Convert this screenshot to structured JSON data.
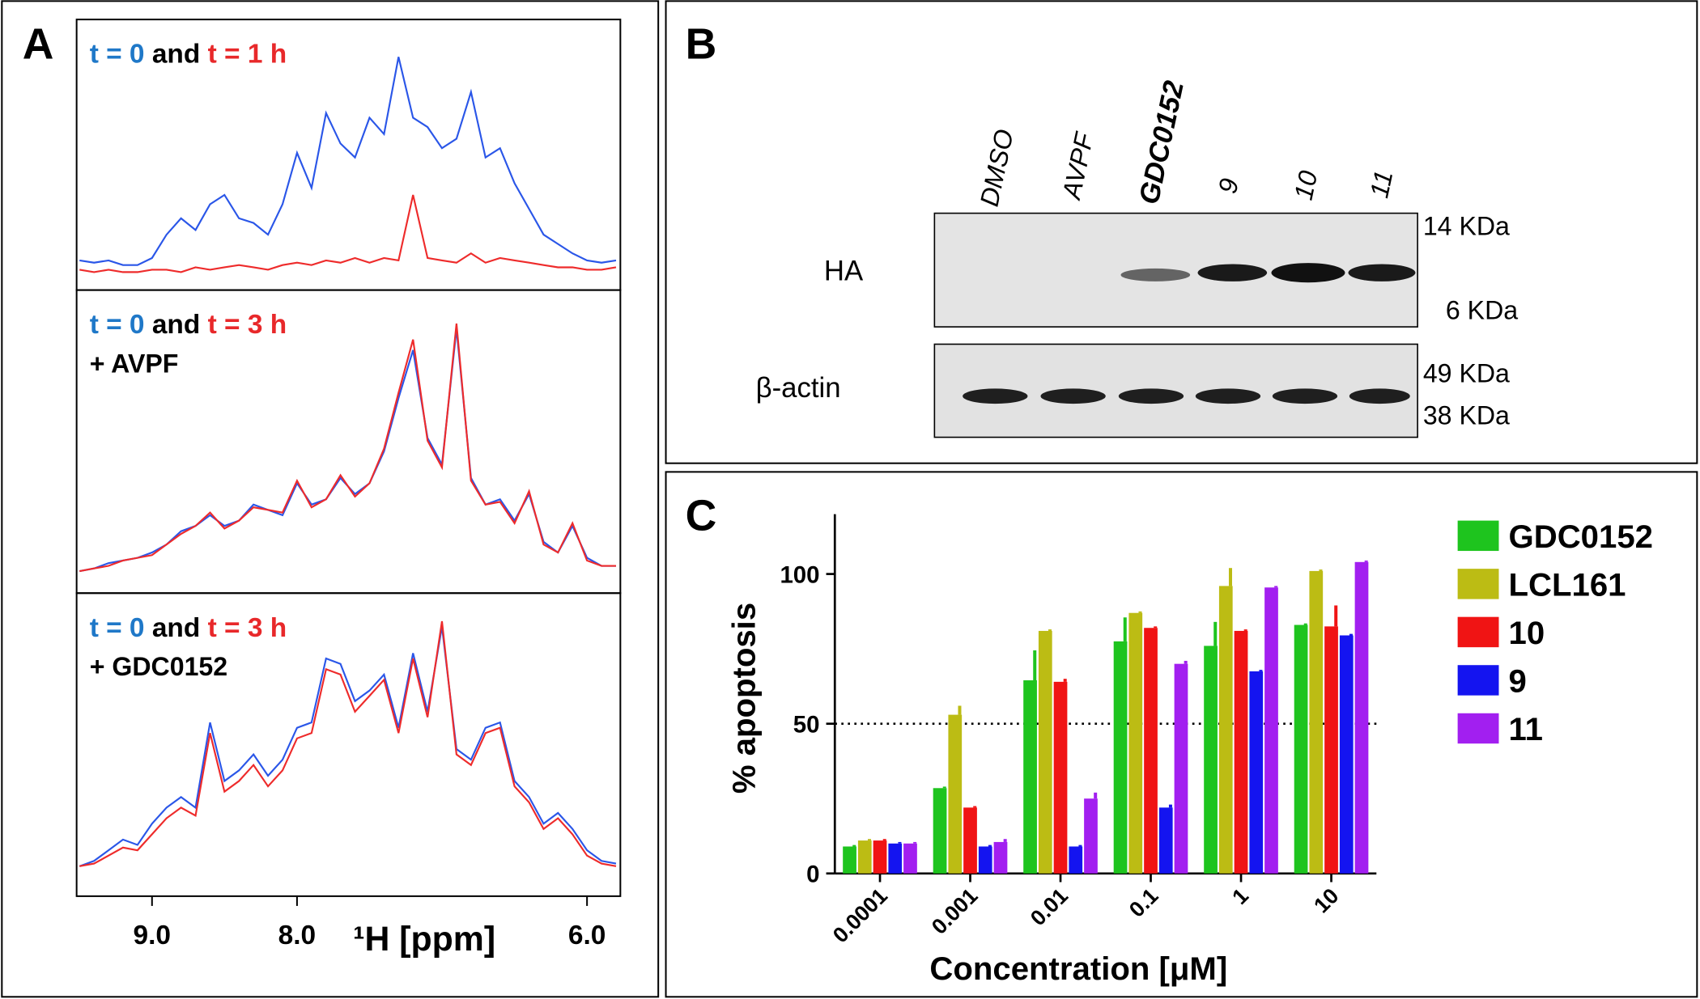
{
  "panel_labels": [
    "A",
    "B",
    "C"
  ],
  "blot": {
    "lanes": [
      "DMSO",
      "AVPF",
      "GDC0152",
      "9",
      "10",
      "11"
    ],
    "rows": [
      "HA",
      "β-actin"
    ],
    "markers": [
      "14 KDa",
      "6 KDa",
      "49 KDa",
      "38 KDa"
    ]
  },
  "chart_data": [
    {
      "type": "line",
      "legend_joiner": "and",
      "xlim": [
        9.52,
        5.77
      ],
      "ylim": [
        0,
        100
      ],
      "x": [
        9.5,
        9.4,
        9.3,
        9.2,
        9.1,
        9.0,
        8.9,
        8.8,
        8.7,
        8.6,
        8.5,
        8.4,
        8.3,
        8.2,
        8.1,
        8.0,
        7.9,
        7.8,
        7.7,
        7.6,
        7.5,
        7.4,
        7.3,
        7.2,
        7.1,
        7.0,
        6.9,
        6.8,
        6.7,
        6.6,
        6.5,
        6.4,
        6.3,
        6.2,
        6.1,
        6.0,
        5.9,
        5.8
      ],
      "series": [
        {
          "name": "t = 0",
          "color": "#2a56e8",
          "label_color": "#1f78c8",
          "values": [
            9,
            8,
            9,
            7,
            7,
            10,
            20,
            27,
            22,
            33,
            37,
            27,
            25,
            20,
            33,
            55,
            40,
            72,
            59,
            53,
            70,
            63,
            96,
            70,
            66,
            57,
            61,
            81,
            53,
            57,
            42,
            31,
            20,
            16,
            12,
            9,
            8,
            9
          ]
        },
        {
          "name": "t = 1 h",
          "color": "#ee2b2b",
          "label_color": "#e8282a",
          "values": [
            5,
            4,
            5,
            4,
            4,
            5,
            5,
            4,
            6,
            5,
            6,
            7,
            6,
            5,
            7,
            8,
            7,
            9,
            8,
            10,
            8,
            10,
            9,
            37,
            10,
            9,
            8,
            12,
            8,
            10,
            9,
            8,
            7,
            6,
            6,
            5,
            5,
            6
          ]
        }
      ]
    },
    {
      "type": "line",
      "legend_joiner": "and",
      "annotation": "+ AVPF",
      "xlim": [
        9.52,
        5.77
      ],
      "ylim": [
        0,
        100
      ],
      "x": [
        9.5,
        9.4,
        9.3,
        9.2,
        9.1,
        9.0,
        8.9,
        8.8,
        8.7,
        8.6,
        8.5,
        8.4,
        8.3,
        8.2,
        8.1,
        8.0,
        7.9,
        7.8,
        7.7,
        7.6,
        7.5,
        7.4,
        7.3,
        7.2,
        7.1,
        7.0,
        6.9,
        6.8,
        6.7,
        6.6,
        6.5,
        6.4,
        6.3,
        6.2,
        6.1,
        6.0,
        5.9,
        5.8
      ],
      "series": [
        {
          "name": "t = 0",
          "color": "#2a56e8",
          "label_color": "#1f78c8",
          "values": [
            5,
            6,
            8,
            9,
            10,
            12,
            15,
            20,
            22,
            26,
            22,
            24,
            30,
            28,
            26,
            38,
            30,
            32,
            40,
            34,
            38,
            50,
            70,
            88,
            55,
            45,
            96,
            40,
            30,
            32,
            24,
            34,
            16,
            12,
            22,
            10,
            7,
            7
          ]
        },
        {
          "name": "t = 3 h",
          "color": "#ee2b2b",
          "label_color": "#e8282a",
          "values": [
            5,
            6,
            7,
            9,
            10,
            11,
            15,
            19,
            22,
            27,
            21,
            24,
            29,
            28,
            27,
            39,
            29,
            32,
            41,
            33,
            38,
            51,
            72,
            92,
            54,
            44,
            98,
            39,
            30,
            31,
            23,
            35,
            15,
            12,
            23,
            9,
            7,
            7
          ]
        }
      ]
    },
    {
      "type": "line",
      "legend_joiner": "and",
      "annotation": "+ GDC0152",
      "xlim": [
        9.52,
        5.77
      ],
      "ylim": [
        0,
        100
      ],
      "xticks": [
        {
          "value": 9,
          "label": "9.0"
        },
        {
          "value": 8,
          "label": "8.0"
        },
        {
          "value": 6,
          "label": "6.0"
        }
      ],
      "xlabel": "¹H [ppm]",
      "x": [
        9.5,
        9.4,
        9.3,
        9.2,
        9.1,
        9.0,
        8.9,
        8.8,
        8.7,
        8.6,
        8.5,
        8.4,
        8.3,
        8.2,
        8.1,
        8.0,
        7.9,
        7.8,
        7.7,
        7.6,
        7.5,
        7.4,
        7.3,
        7.2,
        7.1,
        7.0,
        6.9,
        6.8,
        6.7,
        6.6,
        6.5,
        6.4,
        6.3,
        6.2,
        6.1,
        6.0,
        5.9,
        5.8
      ],
      "series": [
        {
          "name": "t = 0",
          "color": "#2a56e8",
          "label_color": "#1f78c8",
          "values": [
            8,
            10,
            14,
            18,
            16,
            24,
            30,
            34,
            30,
            62,
            40,
            44,
            50,
            42,
            48,
            60,
            62,
            86,
            84,
            70,
            74,
            80,
            60,
            88,
            66,
            98,
            52,
            48,
            60,
            62,
            40,
            34,
            24,
            28,
            22,
            14,
            10,
            9
          ]
        },
        {
          "name": "t = 3 h",
          "color": "#ee2b2b",
          "label_color": "#e8282a",
          "values": [
            8,
            9,
            12,
            15,
            14,
            20,
            26,
            30,
            27,
            58,
            36,
            40,
            46,
            38,
            44,
            56,
            58,
            82,
            80,
            66,
            72,
            78,
            58,
            86,
            64,
            100,
            50,
            46,
            58,
            60,
            38,
            32,
            22,
            26,
            20,
            12,
            9,
            8
          ]
        }
      ]
    },
    {
      "type": "bar",
      "xlabel": "Concentration [μM]",
      "ylabel": "% apoptosis",
      "categories": [
        "0.0001",
        "0.001",
        "0.01",
        "0.1",
        "1",
        "10"
      ],
      "ylim": [
        0,
        120
      ],
      "yticks": [
        0,
        50,
        100
      ],
      "hline": 50,
      "series": [
        {
          "name": "GDC0152",
          "color": "#1ec41e",
          "values": [
            9,
            28.5,
            64.5,
            77.5,
            76,
            83
          ],
          "errors": [
            0.5,
            0.5,
            10,
            8,
            8,
            0.5
          ]
        },
        {
          "name": "LCL161",
          "color": "#bcbc14",
          "values": [
            11,
            53,
            81,
            87,
            96,
            101
          ],
          "errors": [
            0.5,
            3,
            0.5,
            0.5,
            6,
            0.5
          ]
        },
        {
          "name": "10",
          "color": "#f01414",
          "values": [
            11,
            22,
            64,
            82,
            81,
            82.5
          ],
          "errors": [
            0.5,
            0.5,
            1,
            0.5,
            0.5,
            7
          ]
        },
        {
          "name": "9",
          "color": "#1414f0",
          "values": [
            10,
            9,
            9,
            22,
            67.5,
            79.5
          ],
          "errors": [
            0.5,
            0.5,
            0.5,
            1,
            0.5,
            0.5
          ]
        },
        {
          "name": "11",
          "color": "#a21ff0",
          "values": [
            10,
            10.5,
            25,
            70,
            95.5,
            104
          ],
          "errors": [
            0.5,
            1,
            2,
            1,
            0.5,
            0.5
          ]
        }
      ]
    }
  ]
}
